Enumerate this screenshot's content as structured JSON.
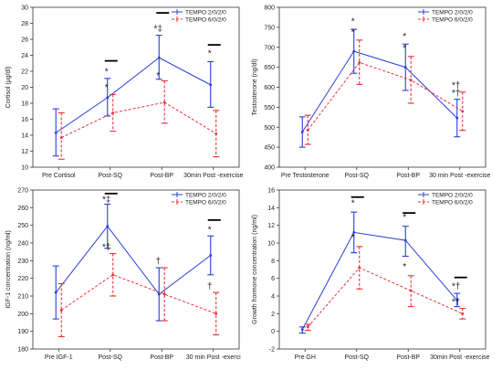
{
  "colors": {
    "series_a": "#2a3fd8",
    "series_b": "#e8333a",
    "axis": "#333333",
    "sig_bar": "#000000"
  },
  "chart_data": [
    {
      "type": "line",
      "ylabel": "Cortisol (μg/dl)",
      "ylim": [
        10,
        30
      ],
      "yticks": [
        10,
        12,
        14,
        16,
        18,
        20,
        22,
        24,
        26,
        28,
        30
      ],
      "categories": [
        "Pre Cortisol",
        "Post-SQ",
        "Post-BP",
        "30min Post  -exercise"
      ],
      "legend": [
        "TEMPO 2/0/2/0",
        "TEMPO 6/0/2/0"
      ],
      "legend_position": "top-right",
      "series": [
        {
          "name": "TEMPO 2/0/2/0",
          "values": [
            14.3,
            18.7,
            23.7,
            20.3
          ],
          "error_low": [
            11.4,
            16.4,
            21.0,
            17.5
          ],
          "error_high": [
            17.3,
            21.1,
            26.5,
            23.2
          ]
        },
        {
          "name": "TEMPO 6/0/2/0",
          "values": [
            13.7,
            16.8,
            18.1,
            14.2
          ],
          "error_low": [
            11.0,
            14.5,
            15.5,
            11.3
          ],
          "error_high": [
            16.8,
            19.1,
            20.8,
            17.1
          ]
        }
      ],
      "annotations": [
        {
          "category": 1,
          "y": 21.6,
          "text": "*"
        },
        {
          "category": 1,
          "y": 19.6,
          "text": "*"
        },
        {
          "category": 2,
          "y": 27.0,
          "text": "*‡"
        },
        {
          "category": 2,
          "y": 21.1,
          "text": "*"
        },
        {
          "category": 3,
          "y": 23.9,
          "text": "*"
        }
      ],
      "sig_bars": [
        {
          "category": 1,
          "y": 23.3
        },
        {
          "category": 2,
          "y": 29.3
        },
        {
          "category": 3,
          "y": 25.3
        }
      ]
    },
    {
      "type": "line",
      "ylabel": "Testosterone (ng/dl)",
      "ylim": [
        400,
        800
      ],
      "yticks": [
        400,
        450,
        500,
        550,
        600,
        650,
        700,
        750,
        800
      ],
      "categories": [
        "Pre Testosterone",
        "Post-SQ",
        "Post-BP",
        "30 min Post  -exercise"
      ],
      "legend": [
        "TEMPO 2/0/2/0",
        "TEMPO 6/0/2/0"
      ],
      "legend_position": "top-right",
      "series": [
        {
          "name": "TEMPO 2/0/2/0",
          "values": [
            488,
            690,
            650,
            523
          ],
          "error_low": [
            450,
            635,
            592,
            476
          ],
          "error_high": [
            526,
            745,
            708,
            570
          ]
        },
        {
          "name": "TEMPO 6/0/2/0",
          "values": [
            493,
            662,
            618,
            540
          ],
          "error_low": [
            457,
            607,
            560,
            492
          ],
          "error_high": [
            530,
            718,
            677,
            588
          ]
        }
      ],
      "annotations": [
        {
          "category": 1,
          "y": 758,
          "text": "*"
        },
        {
          "category": 1,
          "y": 730,
          "text": "*"
        },
        {
          "category": 2,
          "y": 720,
          "text": "*"
        },
        {
          "category": 2,
          "y": 690,
          "text": "*"
        },
        {
          "category": 3,
          "y": 578,
          "text": "*†"
        },
        {
          "category": 3,
          "y": 598,
          "text": "*†"
        }
      ],
      "sig_bars": []
    },
    {
      "type": "line",
      "ylabel": "IGF-1 concentration (ng/ml)",
      "ylim": [
        180,
        270
      ],
      "yticks": [
        180,
        190,
        200,
        210,
        220,
        230,
        240,
        250,
        260,
        270
      ],
      "categories": [
        "Pre IGF-1",
        "Post-SQ",
        "Post-BP",
        "30 min Post  -exerci"
      ],
      "legend": [
        "TEMPO 2/0/2/0",
        "TEMPO 6/0/2/0"
      ],
      "legend_position": "top-right",
      "series": [
        {
          "name": "TEMPO 2/0/2/0",
          "values": [
            212,
            249.5,
            211,
            233
          ],
          "error_low": [
            197,
            237,
            196,
            222
          ],
          "error_high": [
            227,
            262,
            226,
            244
          ]
        },
        {
          "name": "TEMPO 6/0/2/0",
          "values": [
            202,
            222,
            211,
            200
          ],
          "error_low": [
            187,
            210,
            196,
            188
          ],
          "error_high": [
            217,
            234,
            226,
            212
          ]
        }
      ],
      "annotations": [
        {
          "category": 1,
          "y": 263,
          "text": "*‡"
        },
        {
          "category": 1,
          "y": 236,
          "text": "*‡"
        },
        {
          "category": 2,
          "y": 228,
          "text": "†"
        },
        {
          "category": 3,
          "y": 246,
          "text": "*"
        },
        {
          "category": 3,
          "y": 214,
          "text": "†"
        }
      ],
      "sig_bars": [
        {
          "category": 1,
          "y": 268
        },
        {
          "category": 3,
          "y": 253
        }
      ]
    },
    {
      "type": "line",
      "ylabel": "Growth hormone concentration (ng/ml)",
      "ylim": [
        -2,
        16
      ],
      "yticks": [
        -2,
        0,
        2,
        4,
        6,
        8,
        10,
        12,
        14,
        16
      ],
      "categories": [
        "Pre GH",
        "Post-SQ",
        "Post-BP",
        "30min Post  -exercise"
      ],
      "legend": [
        "TEMPO 2/0/2/0",
        "TEMPO 6/0/2/0"
      ],
      "legend_position": "top-right",
      "series": [
        {
          "name": "TEMPO 2/0/2/0",
          "values": [
            0.2,
            11.2,
            10.3,
            3.5
          ],
          "error_low": [
            -0.2,
            8.9,
            8.5,
            2.8
          ],
          "error_high": [
            0.5,
            13.5,
            11.9,
            4.3
          ]
        },
        {
          "name": "TEMPO 6/0/2/0",
          "values": [
            0.5,
            7.2,
            4.6,
            2.0
          ],
          "error_low": [
            0.1,
            4.8,
            2.8,
            1.4
          ],
          "error_high": [
            0.8,
            9.6,
            6.3,
            2.6
          ]
        }
      ],
      "annotations": [
        {
          "category": 1,
          "y": 14.2,
          "text": "*"
        },
        {
          "category": 1,
          "y": 10.3,
          "text": "*"
        },
        {
          "category": 2,
          "y": 12.6,
          "text": "*"
        },
        {
          "category": 2,
          "y": 7.0,
          "text": "*"
        },
        {
          "category": 3,
          "y": 4.8,
          "text": "*†"
        },
        {
          "category": 3,
          "y": 3.0,
          "text": "*†"
        }
      ],
      "sig_bars": [
        {
          "category": 1,
          "y": 15.2
        },
        {
          "category": 2,
          "y": 13.4
        },
        {
          "category": 3,
          "y": 6.1
        }
      ]
    }
  ]
}
